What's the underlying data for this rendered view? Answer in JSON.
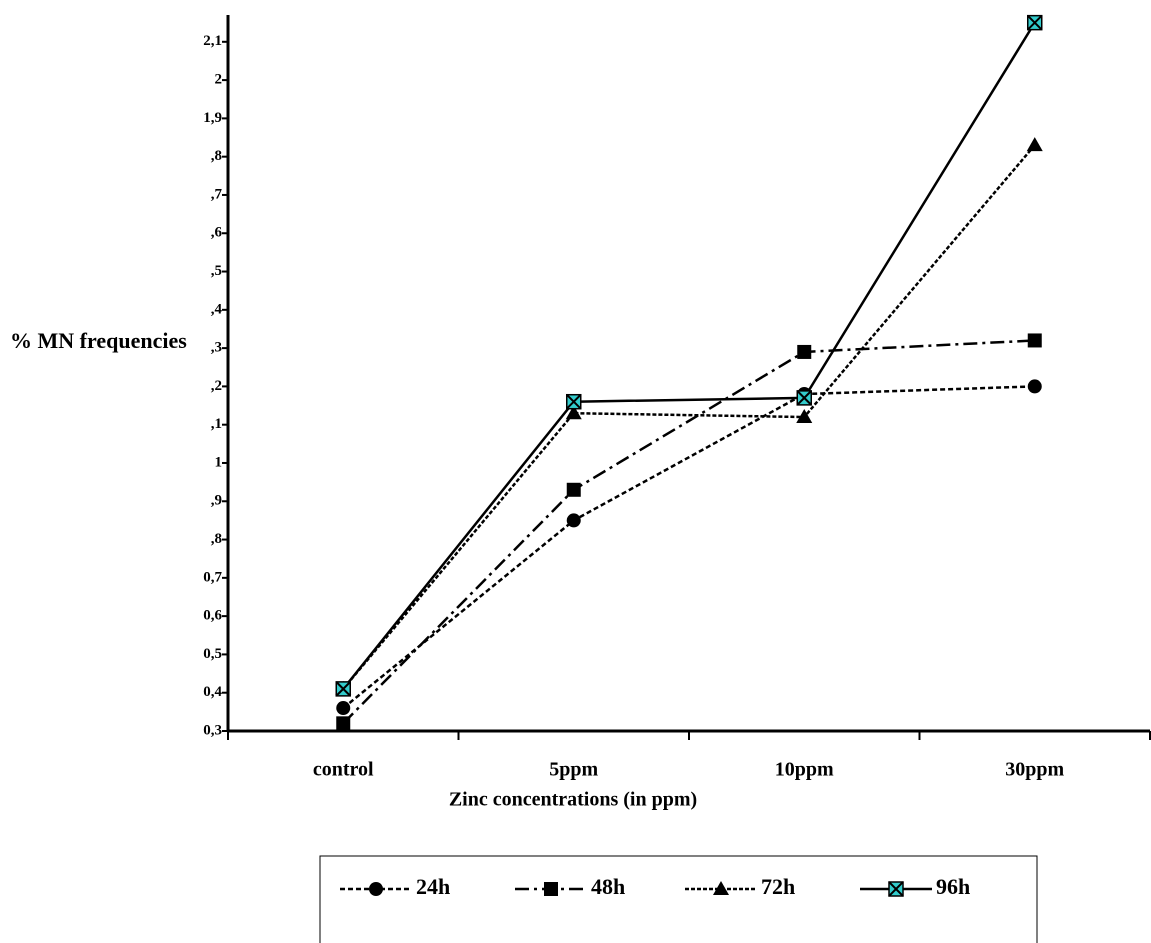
{
  "chart_data": {
    "type": "line",
    "x_label": "Zinc concentrations (in ppm)",
    "y_label": "% MN frequencies",
    "categories": [
      "control",
      "5ppm",
      "10ppm",
      "30ppm"
    ],
    "series": [
      {
        "name": "24h",
        "color": "#000000",
        "marker": "circle",
        "dash": "5,3",
        "values": [
          0.36,
          0.85,
          1.18,
          1.2
        ]
      },
      {
        "name": "48h",
        "color": "#000000",
        "marker": "square",
        "dash": "14,5,3,5",
        "values": [
          0.32,
          0.93,
          1.29,
          1.32
        ]
      },
      {
        "name": "72h",
        "color": "#000000",
        "marker": "triangle",
        "dash": "4,2",
        "values": [
          0.41,
          1.13,
          1.12,
          1.83
        ]
      },
      {
        "name": "96h",
        "color": "#000000",
        "marker": "xsquare",
        "marker_color": "#33cccc",
        "dash": "none",
        "values": [
          0.41,
          1.16,
          1.17,
          2.15
        ]
      }
    ],
    "ylim": [
      0.3,
      2.17
    ],
    "yticks": [
      {
        "value": 0.3,
        "label": "0,3"
      },
      {
        "value": 0.4,
        "label": "0,4"
      },
      {
        "value": 0.5,
        "label": "0,5"
      },
      {
        "value": 0.6,
        "label": "0,6"
      },
      {
        "value": 0.7,
        "label": "0,7"
      },
      {
        "value": 0.8,
        "label": ",8"
      },
      {
        "value": 0.9,
        "label": ",9"
      },
      1,
      {
        "value": 1.1,
        "label": ",1"
      },
      {
        "value": 1.2,
        "label": ",2"
      },
      {
        "value": 1.3,
        "label": ",3"
      },
      {
        "value": 1.4,
        "label": ",4"
      },
      {
        "value": 1.5,
        "label": ",5"
      },
      {
        "value": 1.6,
        "label": ",6"
      },
      {
        "value": 1.7,
        "label": ",7"
      },
      {
        "value": 1.8,
        "label": ",8"
      },
      {
        "value": 1.9,
        "label": "1,9"
      },
      2,
      {
        "value": 2.1,
        "label": "2,1"
      }
    ],
    "legend": "bottom"
  }
}
